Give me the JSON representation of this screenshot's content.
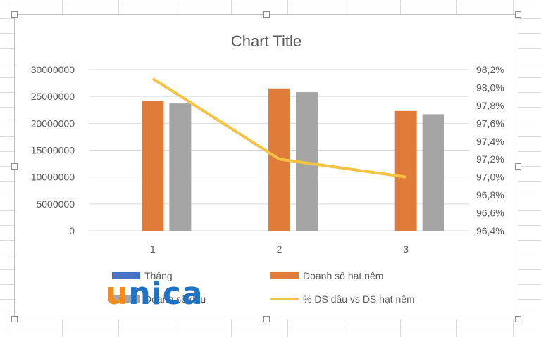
{
  "chart_data": {
    "type": "bar",
    "title": "Chart Title",
    "categories": [
      "1",
      "2",
      "3"
    ],
    "series": [
      {
        "name": "Tháng",
        "type": "bar",
        "color": "#4472c4",
        "values": [
          1,
          2,
          3
        ]
      },
      {
        "name": "Doanh số hạt nêm",
        "type": "bar",
        "color": "#e07b39",
        "values": [
          24200000,
          26500000,
          22300000
        ]
      },
      {
        "name": "Doanh số dầu",
        "type": "bar",
        "color": "#a5a5a5",
        "values": [
          23700000,
          25800000,
          21700000
        ]
      },
      {
        "name": "% DS dầu vs DS hạt nêm",
        "type": "line",
        "axis": "secondary",
        "color": "#f5c242",
        "values": [
          98.1,
          97.2,
          97.0
        ]
      }
    ],
    "ylim": [
      0,
      30000000
    ],
    "yticks": [
      "0",
      "5000000",
      "10000000",
      "15000000",
      "20000000",
      "25000000",
      "30000000"
    ],
    "y2lim": [
      96.4,
      98.2
    ],
    "y2ticks": [
      "96,4%",
      "96,6%",
      "96,8%",
      "97,0%",
      "97,2%",
      "97,4%",
      "97,6%",
      "97,8%",
      "98,0%",
      "98,2%"
    ],
    "grid": true,
    "legend_position": "bottom"
  },
  "watermark": {
    "first_letter": "u",
    "rest": "nica"
  }
}
